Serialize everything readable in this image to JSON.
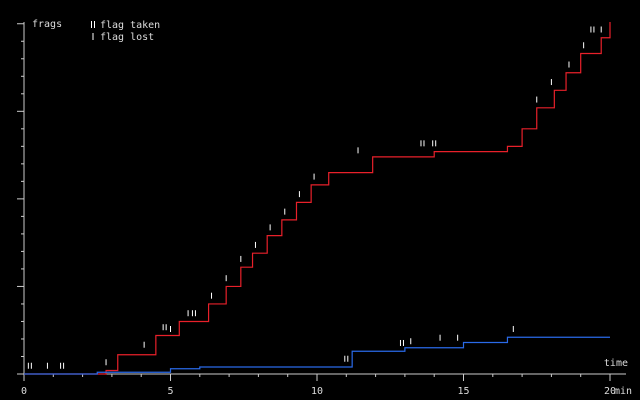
{
  "chart_data": {
    "type": "step-line",
    "ylabel": "frags",
    "xlabel": "time",
    "xunit": "min",
    "xlim": [
      0,
      20
    ],
    "xticks": [
      0,
      5,
      10,
      15,
      20
    ],
    "xminor": [
      1,
      2,
      3,
      4,
      6,
      7,
      8,
      9,
      11,
      12,
      13,
      14,
      16,
      17,
      18,
      19
    ],
    "ylim": [
      0,
      20.1
    ],
    "yticks": [
      0,
      5,
      10,
      15,
      20
    ],
    "yminor": [
      1,
      2,
      3,
      4,
      6,
      7,
      8,
      9,
      11,
      12,
      13,
      14,
      16,
      17,
      18,
      19
    ],
    "series": [
      {
        "name": "red",
        "color": "#e8202a",
        "x": [
          0,
          2.8,
          3.2,
          4.5,
          5.3,
          6.3,
          6.9,
          7.4,
          7.8,
          8.3,
          8.8,
          9.3,
          9.8,
          10.4,
          11.9,
          14.0,
          16.5,
          17.0,
          17.5,
          18.1,
          18.5,
          19.0,
          19.7,
          20.0
        ],
        "values": [
          0,
          0.2,
          1.1,
          2.2,
          3.0,
          4.0,
          5.0,
          6.1,
          6.9,
          7.9,
          8.8,
          9.8,
          10.8,
          11.5,
          12.4,
          12.7,
          13.0,
          14.0,
          15.2,
          16.2,
          17.2,
          18.3,
          19.2,
          20.1
        ]
      },
      {
        "name": "blue",
        "color": "#2a6ae8",
        "x": [
          0,
          2.5,
          5.0,
          6.0,
          10.0,
          11.2,
          13.0,
          15.0,
          16.5,
          20.0
        ],
        "values": [
          0,
          0.1,
          0.3,
          0.4,
          0.4,
          1.3,
          1.5,
          1.8,
          2.1,
          2.1
        ]
      }
    ],
    "markers": [
      {
        "name": "flag taken",
        "symbol": "double",
        "x": [
          0.2,
          1.3,
          4.8,
          5.8,
          11.0,
          12.9,
          13.6,
          14.0,
          19.4
        ],
        "values": [
          0.3,
          0.3,
          2.5,
          3.3,
          0.7,
          1.6,
          13.0,
          13.0,
          19.5
        ]
      },
      {
        "name": "flag lost",
        "symbol": "single",
        "x": [
          0.8,
          2.8,
          4.1,
          5.0,
          5.6,
          6.4,
          6.9,
          7.4,
          7.9,
          8.4,
          8.9,
          9.4,
          9.9,
          11.4,
          13.2,
          14.2,
          14.8,
          16.7,
          17.5,
          18.0,
          18.6,
          19.1,
          19.7
        ],
        "values": [
          0.3,
          0.5,
          1.5,
          2.4,
          3.3,
          4.3,
          5.3,
          6.4,
          7.2,
          8.2,
          9.1,
          10.1,
          11.1,
          12.6,
          1.7,
          1.9,
          1.9,
          2.4,
          15.5,
          16.5,
          17.5,
          18.6,
          19.5
        ]
      }
    ]
  }
}
